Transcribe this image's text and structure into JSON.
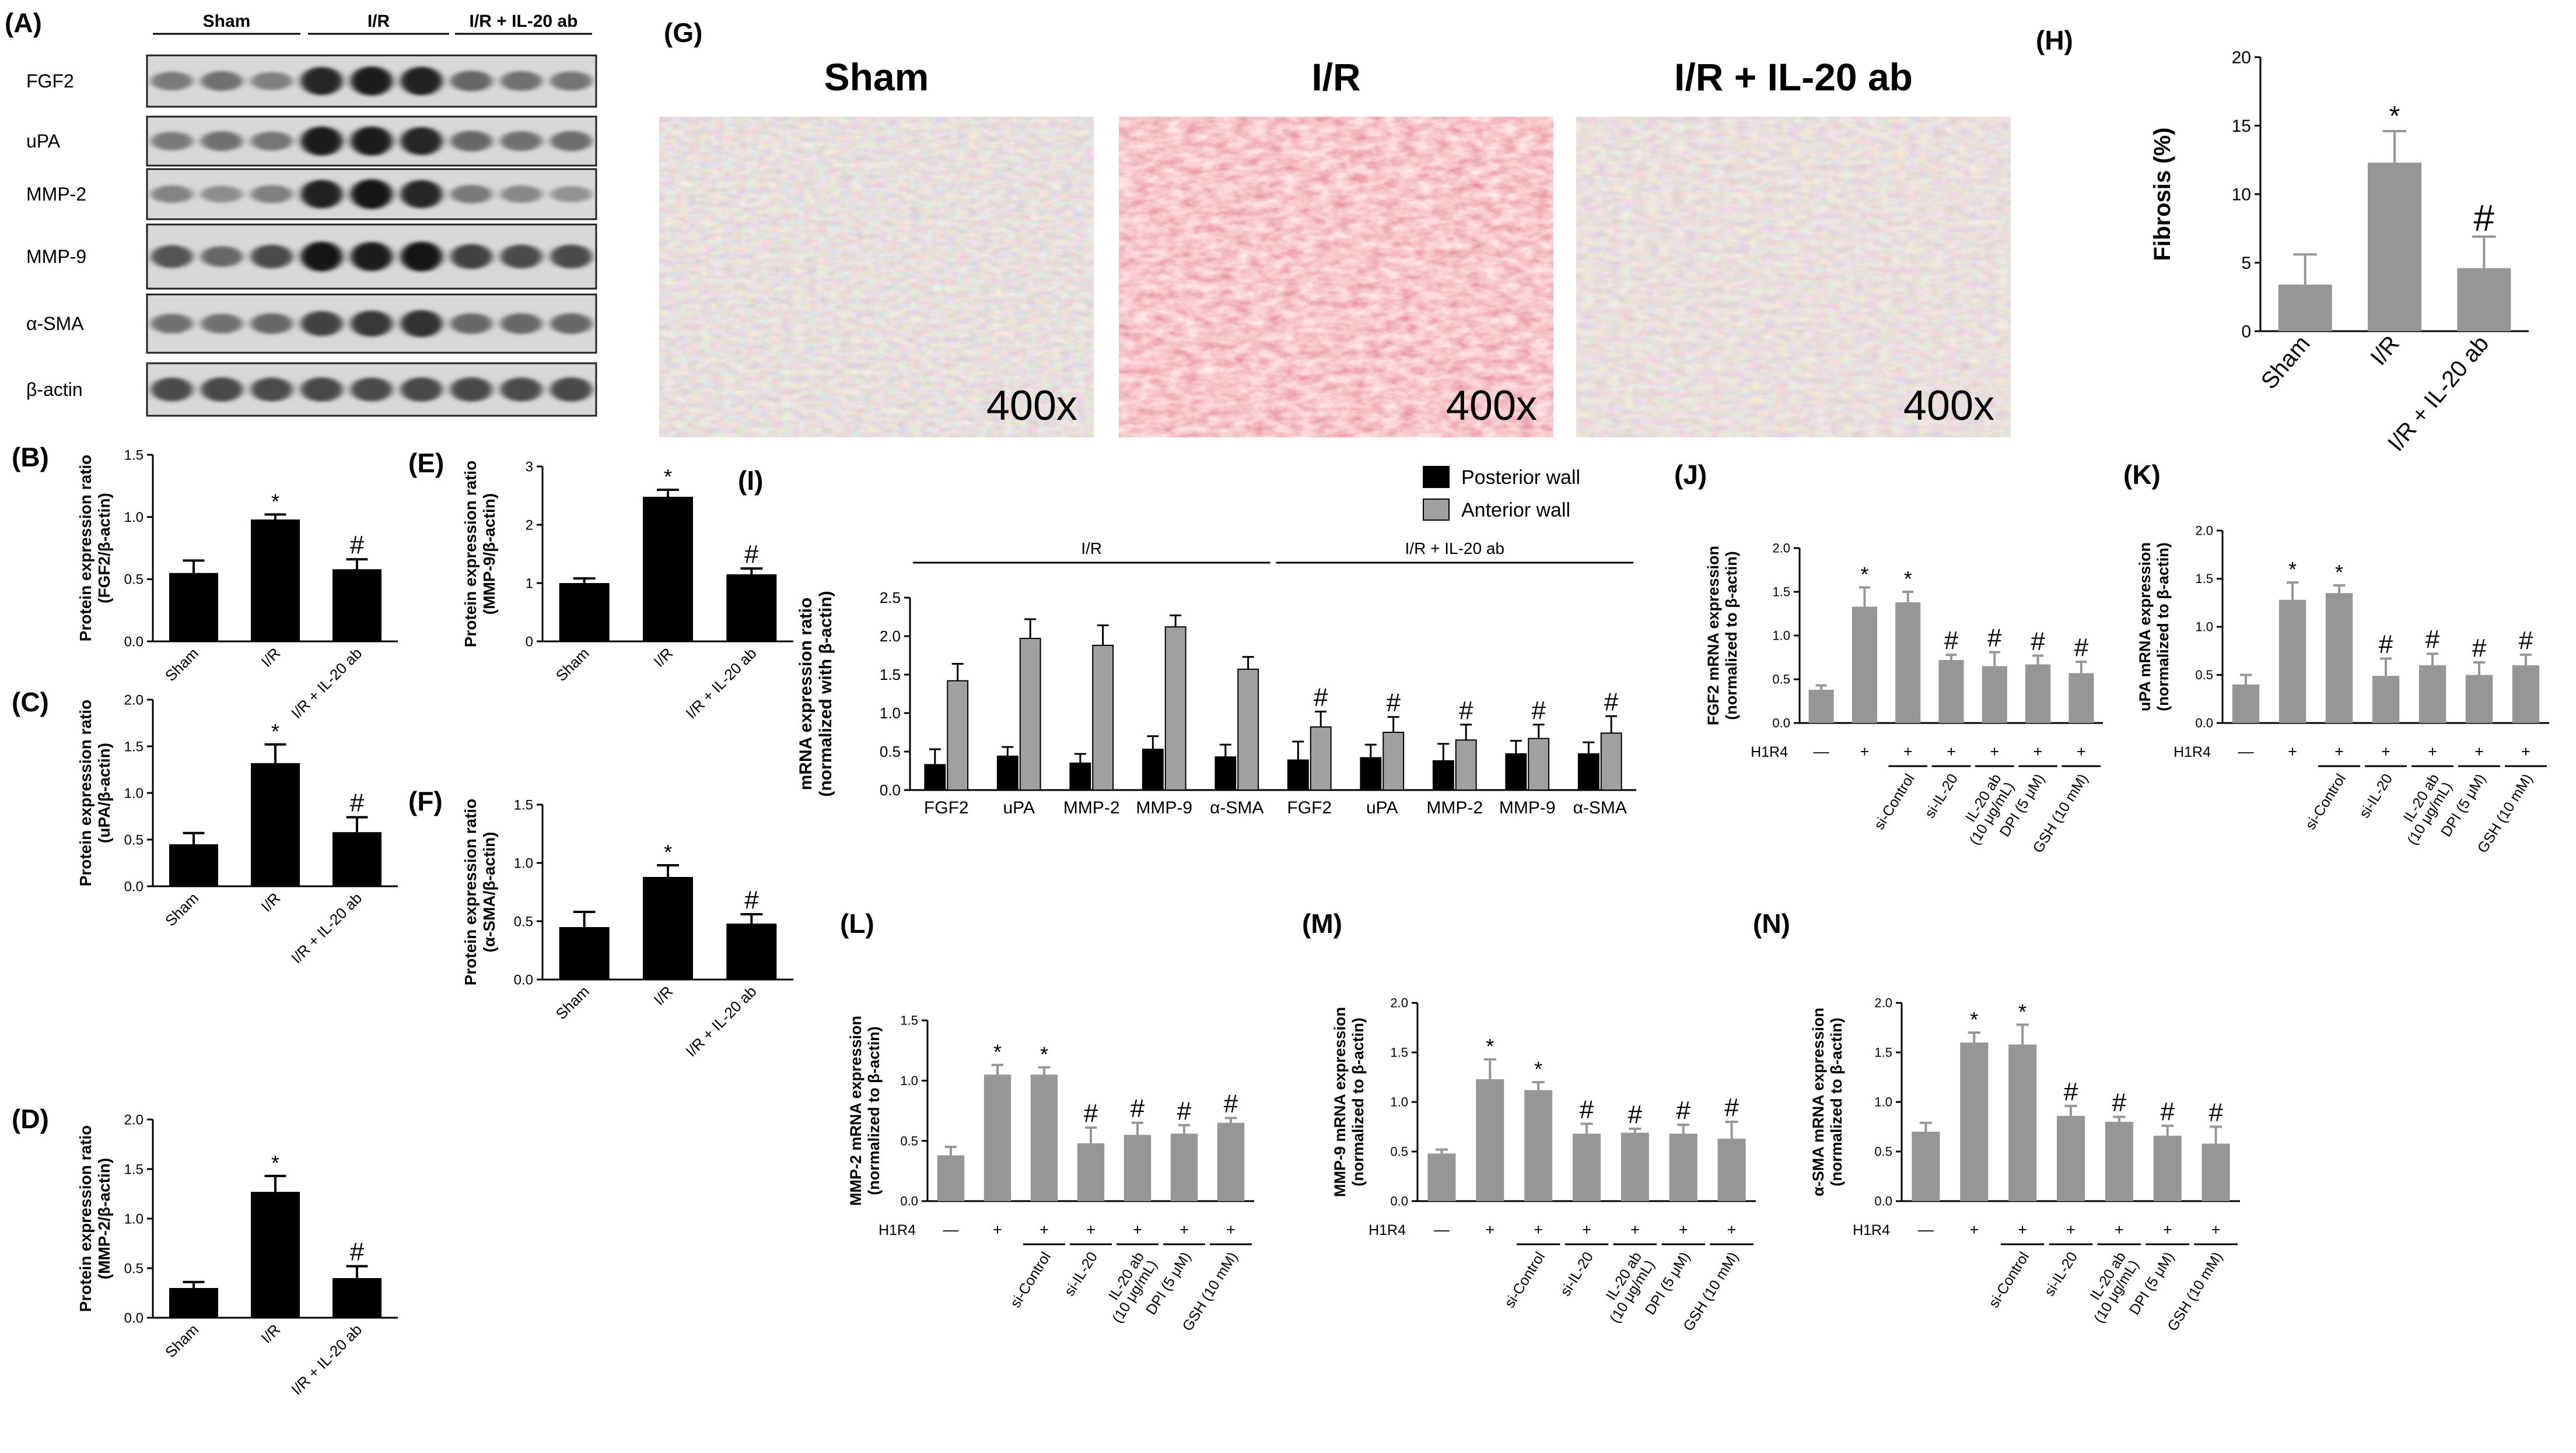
{
  "bar_colors": {
    "black": "#000000",
    "gray": "#969696",
    "light_gray": "#a0a0a0"
  },
  "panel_A": {
    "letter": "(A)",
    "groups": [
      "Sham",
      "I/R",
      "I/R + IL-20 ab"
    ],
    "rows": [
      "FGF2",
      "uPA",
      "MMP-2",
      "MMP-9",
      "α-SMA",
      "β-actin"
    ],
    "intensity": [
      [
        0.45,
        0.5,
        0.42,
        0.9,
        0.95,
        0.92,
        0.55,
        0.5,
        0.48
      ],
      [
        0.45,
        0.5,
        0.47,
        0.95,
        0.95,
        0.9,
        0.55,
        0.5,
        0.52
      ],
      [
        0.4,
        0.35,
        0.42,
        0.92,
        0.98,
        0.9,
        0.45,
        0.38,
        0.32
      ],
      [
        0.65,
        0.55,
        0.7,
        0.98,
        0.95,
        0.98,
        0.75,
        0.7,
        0.7
      ],
      [
        0.5,
        0.5,
        0.55,
        0.75,
        0.8,
        0.85,
        0.55,
        0.55,
        0.55
      ],
      [
        0.7,
        0.72,
        0.7,
        0.72,
        0.7,
        0.72,
        0.72,
        0.7,
        0.72
      ]
    ]
  },
  "panel_G": {
    "letter": "(G)",
    "titles": [
      "Sham",
      "I/R",
      "I/R + IL-20 ab"
    ],
    "magnification": "400x"
  },
  "chart_data": [
    {
      "id": "B",
      "letter": "(B)",
      "type": "bar",
      "style": "black",
      "ylabel_lines": [
        "Protein expression ratio",
        "(FGF2/β-actin)"
      ],
      "categories": [
        "Sham",
        "I/R",
        "I/R + IL-20 ab"
      ],
      "values": [
        0.55,
        0.98,
        0.58
      ],
      "errors": [
        0.1,
        0.04,
        0.08
      ],
      "marks": [
        "",
        "*",
        "#"
      ],
      "ylim": [
        0,
        1.5
      ],
      "yticks": [
        0,
        0.5,
        1.0,
        1.5
      ],
      "ytick_labels": [
        "0.0",
        "0.5",
        "1.0",
        "1.5"
      ]
    },
    {
      "id": "E",
      "letter": "(E)",
      "type": "bar",
      "style": "black",
      "ylabel_lines": [
        "Protein expression ratio",
        "(MMP-9/β-actin)"
      ],
      "categories": [
        "Sham",
        "I/R",
        "I/R + IL-20 ab"
      ],
      "values": [
        1.0,
        2.48,
        1.15
      ],
      "errors": [
        0.08,
        0.12,
        0.1
      ],
      "marks": [
        "",
        "*",
        "#"
      ],
      "ylim": [
        0,
        3
      ],
      "yticks": [
        0,
        1,
        2,
        3
      ],
      "ytick_labels": [
        "0",
        "1",
        "2",
        "3"
      ]
    },
    {
      "id": "C",
      "letter": "(C)",
      "type": "bar",
      "style": "black",
      "ylabel_lines": [
        "Protein expression ratio",
        "(uPA/β-actin)"
      ],
      "categories": [
        "Sham",
        "I/R",
        "I/R + IL-20 ab"
      ],
      "values": [
        0.45,
        1.32,
        0.58
      ],
      "errors": [
        0.12,
        0.2,
        0.16
      ],
      "marks": [
        "",
        "*",
        "#"
      ],
      "ylim": [
        0,
        2.0
      ],
      "yticks": [
        0,
        0.5,
        1.0,
        1.5,
        2.0
      ],
      "ytick_labels": [
        "0.0",
        "0.5",
        "1.0",
        "1.5",
        "2.0"
      ]
    },
    {
      "id": "F",
      "letter": "(F)",
      "type": "bar",
      "style": "black",
      "ylabel_lines": [
        "Protein expression ratio",
        "(α-SMA/β-actin)"
      ],
      "categories": [
        "Sham",
        "I/R",
        "I/R + IL-20 ab"
      ],
      "values": [
        0.45,
        0.88,
        0.48
      ],
      "errors": [
        0.13,
        0.1,
        0.08
      ],
      "marks": [
        "",
        "*",
        "#"
      ],
      "ylim": [
        0,
        1.5
      ],
      "yticks": [
        0,
        0.5,
        1.0,
        1.5
      ],
      "ytick_labels": [
        "0.0",
        "0.5",
        "1.0",
        "1.5"
      ]
    },
    {
      "id": "D",
      "letter": "(D)",
      "type": "bar",
      "style": "black",
      "ylabel_lines": [
        "Protein expression ratio",
        "(MMP-2/β-actin)"
      ],
      "categories": [
        "Sham",
        "I/R",
        "I/R + IL-20 ab"
      ],
      "values": [
        0.3,
        1.27,
        0.4
      ],
      "errors": [
        0.06,
        0.16,
        0.12
      ],
      "marks": [
        "",
        "*",
        "#"
      ],
      "ylim": [
        0,
        2.0
      ],
      "yticks": [
        0,
        0.5,
        1.0,
        1.5,
        2.0
      ],
      "ytick_labels": [
        "0.0",
        "0.5",
        "1.0",
        "1.5",
        "2.0"
      ]
    },
    {
      "id": "H",
      "letter": "(H)",
      "type": "bar",
      "style": "gray",
      "ylabel_lines": [
        "Fibrosis (%)"
      ],
      "categories": [
        "Sham",
        "I/R",
        "I/R + IL-20 ab"
      ],
      "values": [
        3.4,
        12.3,
        4.6
      ],
      "errors": [
        2.2,
        2.3,
        2.3
      ],
      "marks": [
        "",
        "*",
        "#"
      ],
      "ylim": [
        0,
        20
      ],
      "yticks": [
        0,
        5,
        10,
        15,
        20
      ],
      "ytick_labels": [
        "0",
        "5",
        "10",
        "15",
        "20"
      ]
    },
    {
      "id": "I",
      "letter": "(I)",
      "type": "bar",
      "ylabel_lines": [
        "mRNA expression ratio",
        "(normalized with β-actin)"
      ],
      "categories": [
        "FGF2",
        "uPA",
        "MMP-2",
        "MMP-9",
        "α-SMA",
        "FGF2",
        "uPA",
        "MMP-2",
        "MMP-9",
        "α-SMA"
      ],
      "groups": [
        "I/R",
        "I/R + IL-20 ab"
      ],
      "series": [
        {
          "name": "Posterior wall",
          "values": [
            0.33,
            0.44,
            0.35,
            0.53,
            0.43,
            0.39,
            0.42,
            0.38,
            0.47,
            0.47
          ],
          "errors": [
            0.2,
            0.12,
            0.12,
            0.17,
            0.16,
            0.24,
            0.17,
            0.22,
            0.17,
            0.15
          ]
        },
        {
          "name": "Anterior wall",
          "values": [
            1.42,
            1.97,
            1.88,
            2.12,
            1.57,
            0.82,
            0.75,
            0.65,
            0.67,
            0.74
          ],
          "errors": [
            0.22,
            0.25,
            0.26,
            0.15,
            0.16,
            0.2,
            0.2,
            0.2,
            0.18,
            0.22
          ]
        }
      ],
      "marks": [
        "",
        "",
        "",
        "",
        "",
        "#",
        "#",
        "#",
        "#",
        "#"
      ],
      "ylim": [
        0,
        2.5
      ],
      "yticks": [
        0,
        0.5,
        1.0,
        1.5,
        2.0,
        2.5
      ],
      "ytick_labels": [
        "0.0",
        "0.5",
        "1.0",
        "1.5",
        "2.0",
        "2.5"
      ]
    },
    {
      "id": "J",
      "letter": "(J)",
      "type": "bar",
      "style": "gray",
      "ylabel_lines": [
        "FGF2 mRNA expression",
        "(normalized to β-actin)"
      ],
      "values": [
        0.38,
        1.33,
        1.38,
        0.72,
        0.65,
        0.67,
        0.57
      ],
      "errors": [
        0.05,
        0.22,
        0.12,
        0.06,
        0.16,
        0.1,
        0.13
      ],
      "marks": [
        "",
        "*",
        "*",
        "#",
        "#",
        "#",
        "#"
      ],
      "h1r4": [
        "—",
        "+",
        "+",
        "+",
        "+",
        "+",
        "+"
      ],
      "h1r4_label": "H1R4",
      "categories": [
        "",
        "",
        "si-Control",
        "si-IL-20",
        "IL-20 ab (10 μg/mL)",
        "DPI (5 μM)",
        "GSH (10 mM)"
      ],
      "ylim": [
        0,
        2.0
      ],
      "yticks": [
        0,
        0.5,
        1.0,
        1.5,
        2.0
      ],
      "ytick_labels": [
        "0.0",
        "0.5",
        "1.0",
        "1.5",
        "2.0"
      ]
    },
    {
      "id": "K",
      "letter": "(K)",
      "type": "bar",
      "style": "gray",
      "ylabel_lines": [
        "uPA mRNA expression",
        "(normalized to β-actin)"
      ],
      "values": [
        0.4,
        1.28,
        1.35,
        0.49,
        0.6,
        0.5,
        0.6
      ],
      "errors": [
        0.1,
        0.18,
        0.08,
        0.18,
        0.12,
        0.13,
        0.11
      ],
      "marks": [
        "",
        "*",
        "*",
        "#",
        "#",
        "#",
        "#"
      ],
      "h1r4": [
        "—",
        "+",
        "+",
        "+",
        "+",
        "+",
        "+"
      ],
      "h1r4_label": "H1R4",
      "categories": [
        "",
        "",
        "si-Control",
        "si-IL-20",
        "IL-20 ab (10 μg/mL)",
        "DPI (5 μM)",
        "GSH (10 mM)"
      ],
      "ylim": [
        0,
        2.0
      ],
      "yticks": [
        0,
        0.5,
        1.0,
        1.5,
        2.0
      ],
      "ytick_labels": [
        "0.0",
        "0.5",
        "1.0",
        "1.5",
        "2.0"
      ]
    },
    {
      "id": "L",
      "letter": "(L)",
      "type": "bar",
      "style": "gray",
      "ylabel_lines": [
        "MMP-2 mRNA expression",
        "(normalized to β-actin)"
      ],
      "values": [
        0.38,
        1.05,
        1.05,
        0.48,
        0.55,
        0.56,
        0.65
      ],
      "errors": [
        0.07,
        0.08,
        0.06,
        0.13,
        0.1,
        0.07,
        0.04
      ],
      "marks": [
        "",
        "*",
        "*",
        "#",
        "#",
        "#",
        "#"
      ],
      "h1r4": [
        "—",
        "+",
        "+",
        "+",
        "+",
        "+",
        "+"
      ],
      "h1r4_label": "H1R4",
      "categories": [
        "",
        "",
        "si-Control",
        "si-IL-20",
        "IL-20 ab (10 μg/mL)",
        "DPI (5 μM)",
        "GSH (10 mM)"
      ],
      "ylim": [
        0,
        1.5
      ],
      "yticks": [
        0,
        0.5,
        1.0,
        1.5
      ],
      "ytick_labels": [
        "0.0",
        "0.5",
        "1.0",
        "1.5"
      ]
    },
    {
      "id": "M",
      "letter": "(M)",
      "type": "bar",
      "style": "gray",
      "ylabel_lines": [
        "MMP-9 mRNA expression",
        "(normalized to β-actin)"
      ],
      "values": [
        0.48,
        1.23,
        1.12,
        0.68,
        0.69,
        0.68,
        0.63
      ],
      "errors": [
        0.04,
        0.2,
        0.08,
        0.1,
        0.04,
        0.09,
        0.17
      ],
      "marks": [
        "",
        "*",
        "*",
        "#",
        "#",
        "#",
        "#"
      ],
      "h1r4": [
        "—",
        "+",
        "+",
        "+",
        "+",
        "+",
        "+"
      ],
      "h1r4_label": "H1R4",
      "categories": [
        "",
        "",
        "si-Control",
        "si-IL-20",
        "IL-20 ab (10 μg/mL)",
        "DPI (5 μM)",
        "GSH (10 mM)"
      ],
      "ylim": [
        0,
        2.0
      ],
      "yticks": [
        0,
        0.5,
        1.0,
        1.5,
        2.0
      ],
      "ytick_labels": [
        "0.0",
        "0.5",
        "1.0",
        "1.5",
        "2.0"
      ]
    },
    {
      "id": "N",
      "letter": "(N)",
      "type": "bar",
      "style": "gray",
      "ylabel_lines": [
        "α-SMA mRNA expression",
        "(normalized to β-actin)"
      ],
      "values": [
        0.7,
        1.6,
        1.58,
        0.86,
        0.8,
        0.66,
        0.58
      ],
      "errors": [
        0.09,
        0.1,
        0.2,
        0.1,
        0.05,
        0.1,
        0.17
      ],
      "marks": [
        "",
        "*",
        "*",
        "#",
        "#",
        "#",
        "#"
      ],
      "h1r4": [
        "—",
        "+",
        "+",
        "+",
        "+",
        "+",
        "+"
      ],
      "h1r4_label": "H1R4",
      "categories": [
        "",
        "",
        "si-Control",
        "si-IL-20",
        "IL-20 ab (10 μg/mL)",
        "DPI (5 μM)",
        "GSH (10 mM)"
      ],
      "ylim": [
        0,
        2.0
      ],
      "yticks": [
        0,
        0.5,
        1.0,
        1.5,
        2.0
      ],
      "ytick_labels": [
        "0.0",
        "0.5",
        "1.0",
        "1.5",
        "2.0"
      ]
    }
  ]
}
